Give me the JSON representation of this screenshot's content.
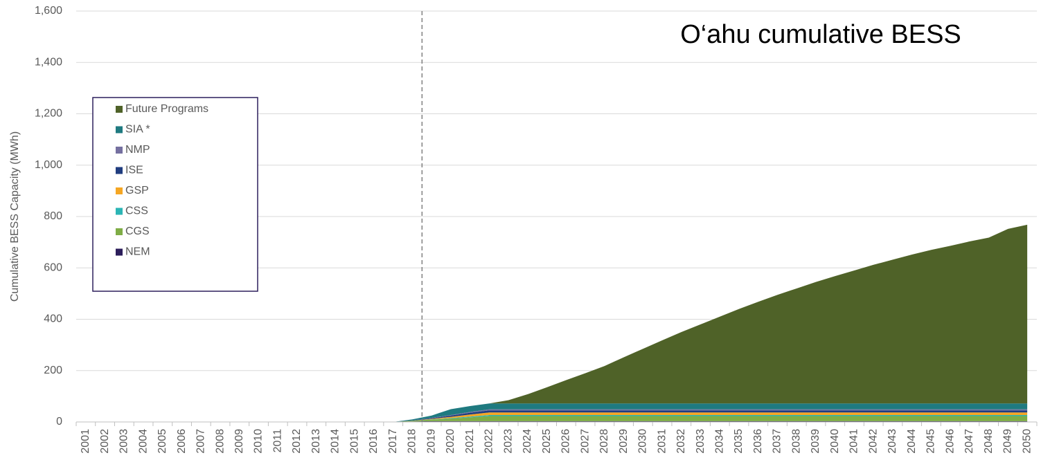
{
  "chart_data": {
    "type": "stacked_area",
    "annotation": "O‘ahu cumulative BESS",
    "y_label": "Cumulative BESS Capacity (MWh)",
    "categories": [
      "2001",
      "2002",
      "2003",
      "2004",
      "2005",
      "2006",
      "2007",
      "2008",
      "2009",
      "2010",
      "2011",
      "2012",
      "2013",
      "2014",
      "2015",
      "2016",
      "2017",
      "2018",
      "2019",
      "2020",
      "2021",
      "2022",
      "2023",
      "2024",
      "2025",
      "2026",
      "2027",
      "2028",
      "2029",
      "2030",
      "2031",
      "2032",
      "2033",
      "2034",
      "2035",
      "2036",
      "2037",
      "2038",
      "2039",
      "2040",
      "2041",
      "2042",
      "2043",
      "2044",
      "2045",
      "2046",
      "2047",
      "2048",
      "2049",
      "2050"
    ],
    "series": [
      {
        "name": "NEM",
        "color": "#2c1e5b",
        "values": [
          0,
          0,
          0,
          0,
          0,
          0,
          0,
          0,
          0,
          0,
          0,
          0,
          0,
          0,
          0,
          0,
          0,
          2,
          3,
          3,
          3,
          3,
          3,
          3,
          3,
          3,
          3,
          3,
          3,
          3,
          3,
          3,
          3,
          3,
          3,
          3,
          3,
          3,
          3,
          3,
          3,
          3,
          3,
          3,
          3,
          3,
          3,
          3,
          3,
          3
        ]
      },
      {
        "name": "CGS",
        "color": "#7fad46",
        "values": [
          0,
          0,
          0,
          0,
          0,
          0,
          0,
          0,
          0,
          0,
          0,
          0,
          0,
          0,
          0,
          0,
          0,
          3,
          6,
          10,
          15,
          20,
          20,
          20,
          20,
          20,
          20,
          20,
          20,
          20,
          20,
          20,
          20,
          20,
          20,
          20,
          20,
          20,
          20,
          20,
          20,
          20,
          20,
          20,
          20,
          20,
          20,
          20,
          20,
          20
        ]
      },
      {
        "name": "CSS",
        "color": "#2bb5b5",
        "values": [
          0,
          0,
          0,
          0,
          0,
          0,
          0,
          0,
          0,
          0,
          0,
          0,
          0,
          0,
          0,
          0,
          0,
          0,
          1,
          2,
          3,
          4,
          4,
          4,
          4,
          4,
          4,
          4,
          4,
          4,
          4,
          4,
          4,
          4,
          4,
          4,
          4,
          4,
          4,
          4,
          4,
          4,
          4,
          4,
          4,
          4,
          4,
          4,
          4,
          4
        ]
      },
      {
        "name": "GSP",
        "color": "#f5a623",
        "values": [
          0,
          0,
          0,
          0,
          0,
          0,
          0,
          0,
          0,
          0,
          0,
          0,
          0,
          0,
          0,
          0,
          0,
          0,
          2,
          5,
          8,
          10,
          10,
          10,
          10,
          10,
          10,
          10,
          10,
          10,
          10,
          10,
          10,
          10,
          10,
          10,
          10,
          10,
          10,
          10,
          10,
          10,
          10,
          10,
          10,
          10,
          10,
          10,
          10,
          10
        ]
      },
      {
        "name": "ISE",
        "color": "#203d7f",
        "values": [
          0,
          0,
          0,
          0,
          0,
          0,
          0,
          0,
          0,
          0,
          0,
          0,
          0,
          0,
          0,
          0,
          0,
          1,
          3,
          5,
          7,
          8,
          8,
          8,
          8,
          8,
          8,
          8,
          8,
          8,
          8,
          8,
          8,
          8,
          8,
          8,
          8,
          8,
          8,
          8,
          8,
          8,
          8,
          8,
          8,
          8,
          8,
          8,
          8,
          8
        ]
      },
      {
        "name": "NMP",
        "color": "#7570a0",
        "values": [
          0,
          0,
          0,
          0,
          0,
          0,
          0,
          0,
          0,
          0,
          0,
          0,
          0,
          0,
          0,
          0,
          0,
          0,
          1,
          2,
          3,
          4,
          4,
          4,
          4,
          4,
          4,
          4,
          4,
          4,
          4,
          4,
          4,
          4,
          4,
          4,
          4,
          4,
          4,
          4,
          4,
          4,
          4,
          4,
          4,
          4,
          4,
          4,
          4,
          4
        ]
      },
      {
        "name": "SIA *",
        "color": "#1f7a80",
        "values": [
          0,
          0,
          0,
          0,
          0,
          0,
          0,
          0,
          0,
          0,
          0,
          0,
          0,
          0,
          0,
          0,
          0,
          4,
          9,
          23,
          23,
          23,
          23,
          23,
          23,
          23,
          23,
          23,
          23,
          23,
          23,
          23,
          23,
          23,
          23,
          23,
          23,
          23,
          23,
          23,
          23,
          23,
          23,
          23,
          23,
          23,
          23,
          23,
          23,
          23
        ]
      },
      {
        "name": "Future Programs",
        "color": "#4f6228",
        "values": [
          0,
          0,
          0,
          0,
          0,
          0,
          0,
          0,
          0,
          0,
          0,
          0,
          0,
          0,
          0,
          0,
          0,
          0,
          0,
          0,
          0,
          0,
          13,
          36,
          63,
          91,
          118,
          146,
          180,
          213,
          246,
          278,
          308,
          338,
          368,
          396,
          423,
          448,
          473,
          496,
          518,
          540,
          560,
          580,
          598,
          614,
          631,
          646,
          680,
          696
        ]
      }
    ],
    "ylim": [
      0,
      1600
    ],
    "yticks": [
      0,
      200,
      400,
      600,
      800,
      {
        "value": 1000,
        "label": "1,000"
      },
      {
        "value": 1200,
        "label": "1,200"
      },
      {
        "value": 1400,
        "label": "1,400"
      },
      {
        "value": 1600,
        "label": "1,600"
      }
    ],
    "grid": true
  }
}
